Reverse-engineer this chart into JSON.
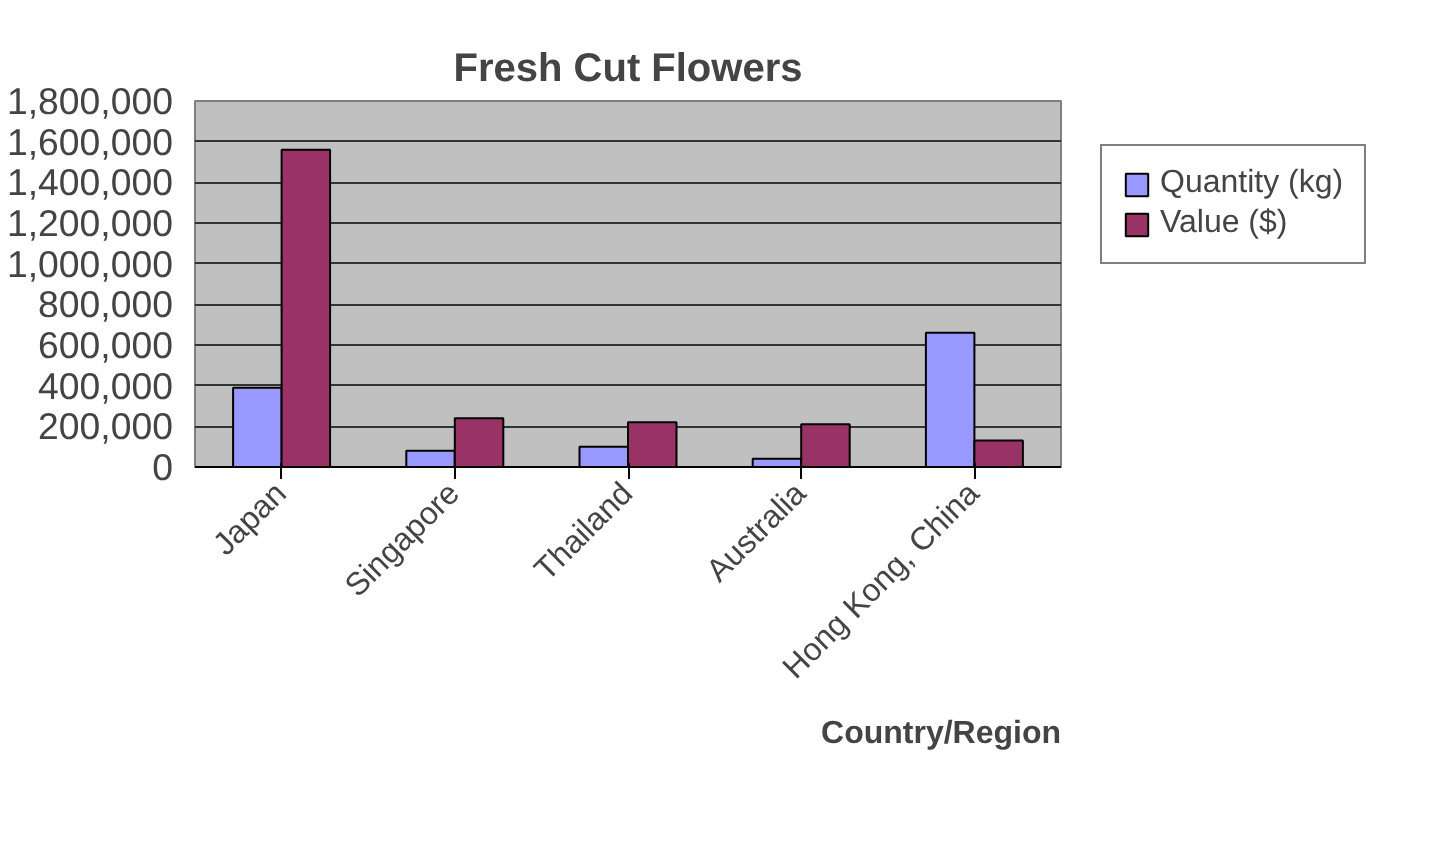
{
  "chart_data": {
    "type": "bar",
    "title": "Fresh Cut Flowers",
    "xlabel": "Country/Region",
    "categories": [
      "Japan",
      "Singapore",
      "Thailand",
      "Australia",
      "Hong Kong, China"
    ],
    "series": [
      {
        "name": "Quantity (kg)",
        "color": "#9999ff",
        "values": [
          390000,
          80000,
          100000,
          40000,
          660000
        ]
      },
      {
        "name": "Value ($)",
        "color": "#993366",
        "values": [
          1560000,
          240000,
          220000,
          210000,
          130000
        ]
      }
    ],
    "ylim": [
      0,
      1800000
    ],
    "yticks": [
      {
        "value": 0,
        "label": "0"
      },
      {
        "value": 200000,
        "label": "200,000"
      },
      {
        "value": 400000,
        "label": "400,000"
      },
      {
        "value": 600000,
        "label": "600,000"
      },
      {
        "value": 800000,
        "label": "800,000"
      },
      {
        "value": 1000000,
        "label": "1,000,000"
      },
      {
        "value": 1200000,
        "label": "1,200,000"
      },
      {
        "value": 1400000,
        "label": "1,400,000"
      },
      {
        "value": 1600000,
        "label": "1,600,000"
      },
      {
        "value": 1800000,
        "label": "1,800,000"
      }
    ],
    "grid": "y",
    "legend": "right"
  }
}
